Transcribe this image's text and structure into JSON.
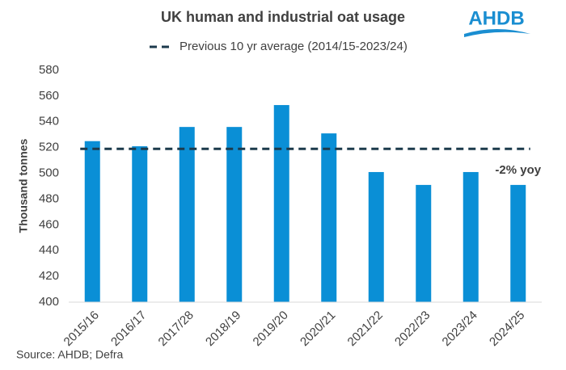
{
  "chart_data": {
    "type": "bar",
    "title": "UK human and industrial oat usage",
    "logo": "AHDB",
    "categories": [
      "2015/16",
      "2016/17",
      "2017/28",
      "2018/19",
      "2019/20",
      "2020/21",
      "2021/22",
      "2022/23",
      "2023/24",
      "2024/25"
    ],
    "values": [
      525,
      521,
      536,
      536,
      553,
      531,
      501,
      491,
      501,
      491
    ],
    "color": "#0a8fd6",
    "reference_line": {
      "name": "Previous 10 yr average (2014/15-2023/24)",
      "value": 519,
      "color": "#1c3a4c"
    },
    "annotation": "-2% yoy",
    "y_label": "Thousand tonnes",
    "ylim": [
      400,
      580
    ],
    "yticks": [
      400,
      420,
      440,
      460,
      480,
      500,
      520,
      540,
      560,
      580
    ],
    "grid": false,
    "source": "Source: AHDB; Defra"
  }
}
